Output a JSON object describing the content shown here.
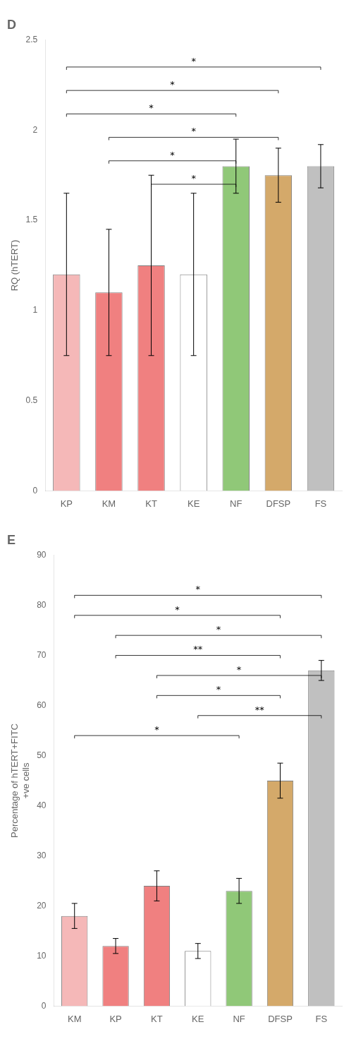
{
  "chart_data": [
    {
      "type": "bar",
      "title": "D",
      "categories": [
        "KP",
        "KM",
        "KT",
        "KE",
        "NF",
        "DFSP",
        "FS"
      ],
      "values": [
        1.2,
        1.1,
        1.25,
        1.2,
        1.8,
        1.75,
        1.8
      ],
      "errors": [
        0.45,
        0.35,
        0.5,
        0.45,
        0.15,
        0.15,
        0.12
      ],
      "colors": [
        "#f5b8b8",
        "#f08080",
        "#f08080",
        "#ffffff",
        "#90c878",
        "#d4a96a",
        "#c0c0c0"
      ],
      "ylabel": "RQ (hTERT)",
      "ylim": [
        0,
        2.5
      ],
      "yticks": [
        0,
        0.5,
        1,
        1.5,
        2,
        2.5
      ],
      "grid": false,
      "legend": false,
      "annotations": [
        {
          "x1": "KP",
          "x2": "FS",
          "y": 2.35,
          "text": "*"
        },
        {
          "x1": "KP",
          "x2": "DFSP",
          "y": 2.22,
          "text": "*"
        },
        {
          "x1": "KP",
          "x2": "NF",
          "y": 2.09,
          "text": "*"
        },
        {
          "x1": "KM",
          "x2": "DFSP",
          "y": 1.96,
          "text": "*"
        },
        {
          "x1": "KM",
          "x2": "NF",
          "y": 1.83,
          "text": "*"
        },
        {
          "x1": "KT",
          "x2": "NF",
          "y": 1.7,
          "text": "*"
        }
      ]
    },
    {
      "type": "bar",
      "title": "E",
      "categories": [
        "KM",
        "KP",
        "KT",
        "KE",
        "NF",
        "DFSP",
        "FS"
      ],
      "values": [
        18,
        12,
        24,
        11,
        23,
        45,
        67
      ],
      "errors": [
        2.5,
        1.5,
        3,
        1.5,
        2.5,
        3.5,
        2
      ],
      "colors": [
        "#f5b8b8",
        "#f08080",
        "#f08080",
        "#ffffff",
        "#90c878",
        "#d4a96a",
        "#c0c0c0"
      ],
      "ylabel": "Percentage of hTERT+FITC\n+ve cells",
      "ylim": [
        0,
        90
      ],
      "yticks": [
        0,
        10,
        20,
        30,
        40,
        50,
        60,
        70,
        80,
        90
      ],
      "grid": false,
      "legend": false,
      "annotations": [
        {
          "x1": "KM",
          "x2": "FS",
          "y": 82,
          "text": "*"
        },
        {
          "x1": "KM",
          "x2": "DFSP",
          "y": 78,
          "text": "*"
        },
        {
          "x1": "KP",
          "x2": "FS",
          "y": 74,
          "text": "*"
        },
        {
          "x1": "KP",
          "x2": "DFSP",
          "y": 70,
          "text": "**"
        },
        {
          "x1": "KT",
          "x2": "FS",
          "y": 66,
          "text": "*"
        },
        {
          "x1": "KT",
          "x2": "DFSP",
          "y": 62,
          "text": "*"
        },
        {
          "x1": "KE",
          "x2": "FS",
          "y": 58,
          "text": "**"
        },
        {
          "x1": "KM",
          "x2": "NF",
          "y": 54,
          "text": "*"
        }
      ]
    }
  ]
}
